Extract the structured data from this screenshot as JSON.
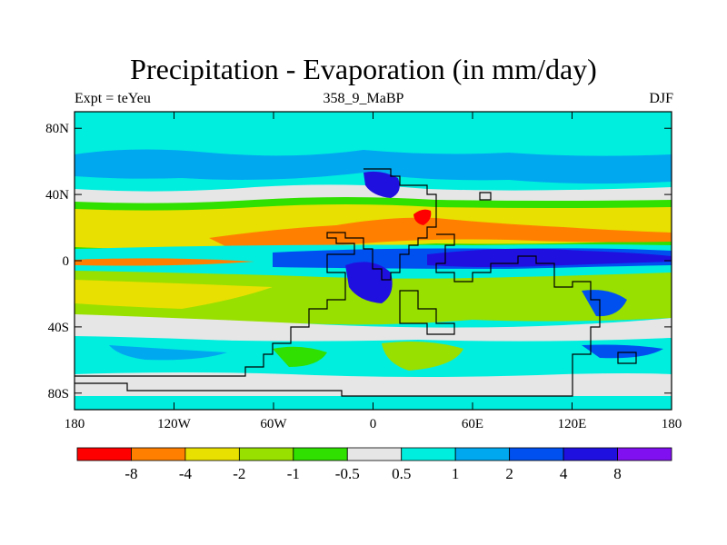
{
  "title": "Precipitation - Evaporation (in mm/day)",
  "subtitle_left": "Expt = teYeu",
  "subtitle_center": "358_9_MaBP",
  "subtitle_right": "DJF",
  "map": {
    "lon_range": [
      -180,
      180
    ],
    "lat_range": [
      -90,
      90
    ],
    "lat_ticks": [
      {
        "value": 80,
        "label": "80N"
      },
      {
        "value": 40,
        "label": "40N"
      },
      {
        "value": 0,
        "label": "0"
      },
      {
        "value": -40,
        "label": "40S"
      },
      {
        "value": -80,
        "label": "80S"
      }
    ],
    "lon_ticks": [
      {
        "value": -180,
        "label": "180"
      },
      {
        "value": -120,
        "label": "120W"
      },
      {
        "value": -60,
        "label": "60W"
      },
      {
        "value": 0,
        "label": "0"
      },
      {
        "value": 60,
        "label": "60E"
      },
      {
        "value": 120,
        "label": "120E"
      },
      {
        "value": 180,
        "label": "180"
      }
    ]
  },
  "colorbar": {
    "colors": [
      "#ff0000",
      "#ff8000",
      "#e8e000",
      "#98e000",
      "#30e000",
      "#e6e6e6",
      "#00eede",
      "#00a8f0",
      "#0050f0",
      "#2010e0",
      "#8010f0"
    ],
    "labels": [
      "-8",
      "-4",
      "-2",
      "-1",
      "-0.5",
      "0.5",
      "1",
      "2",
      "4",
      "8"
    ]
  },
  "palette": {
    "land_outline": "#000000",
    "background": "#ffffff"
  }
}
